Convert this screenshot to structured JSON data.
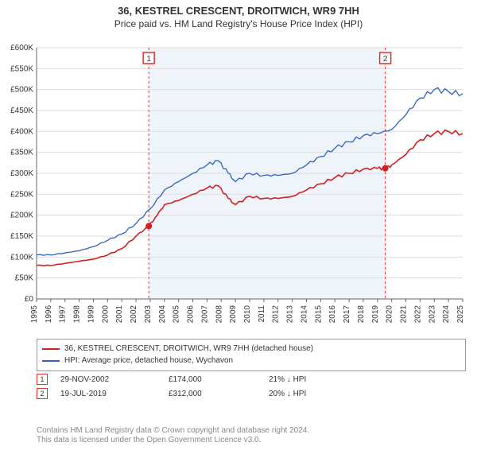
{
  "title": "36, KESTREL CRESCENT, DROITWICH, WR9 7HH",
  "subtitle": "Price paid vs. HM Land Registry's House Price Index (HPI)",
  "chart": {
    "type": "line",
    "background": "#ffffff",
    "shaded_band_color": "#eef4fa",
    "grid_color": "#dddddd",
    "axis_color": "#666666",
    "x": {
      "min": 1995,
      "max": 2025,
      "ticks": [
        1995,
        1996,
        1997,
        1998,
        1999,
        2000,
        2001,
        2002,
        2003,
        2004,
        2005,
        2006,
        2007,
        2008,
        2009,
        2010,
        2011,
        2012,
        2013,
        2014,
        2015,
        2016,
        2017,
        2018,
        2019,
        2020,
        2021,
        2022,
        2023,
        2024,
        2025
      ]
    },
    "y": {
      "min": 0,
      "max": 600000,
      "step": 50000,
      "prefix": "£",
      "suffix": "K",
      "ticks": [
        "£0",
        "£50K",
        "£100K",
        "£150K",
        "£200K",
        "£250K",
        "£300K",
        "£350K",
        "£400K",
        "£450K",
        "£500K",
        "£550K",
        "£600K"
      ]
    },
    "series": [
      {
        "name": "36, KESTREL CRESCENT, DROITWICH, WR9 7HH (detached house)",
        "color": "#d02020",
        "width": 1.6,
        "data": [
          [
            1995,
            80000
          ],
          [
            1996,
            80000
          ],
          [
            1997,
            85000
          ],
          [
            1998,
            90000
          ],
          [
            1999,
            95000
          ],
          [
            2000,
            105000
          ],
          [
            2001,
            120000
          ],
          [
            2002,
            150000
          ],
          [
            2002.9,
            174000
          ],
          [
            2003.5,
            200000
          ],
          [
            2004,
            225000
          ],
          [
            2005,
            235000
          ],
          [
            2006,
            250000
          ],
          [
            2007,
            265000
          ],
          [
            2007.8,
            270000
          ],
          [
            2008.5,
            240000
          ],
          [
            2009,
            225000
          ],
          [
            2010,
            245000
          ],
          [
            2011,
            240000
          ],
          [
            2012,
            240000
          ],
          [
            2013,
            245000
          ],
          [
            2014,
            260000
          ],
          [
            2015,
            275000
          ],
          [
            2016,
            290000
          ],
          [
            2017,
            300000
          ],
          [
            2018,
            310000
          ],
          [
            2019,
            312000
          ],
          [
            2019.55,
            312000
          ],
          [
            2020,
            320000
          ],
          [
            2021,
            345000
          ],
          [
            2022,
            380000
          ],
          [
            2023,
            395000
          ],
          [
            2024,
            400000
          ],
          [
            2025,
            395000
          ]
        ]
      },
      {
        "name": "HPI: Average price, detached house, Wychavon",
        "color": "#3060c0",
        "width": 1.3,
        "data": [
          [
            1995,
            105000
          ],
          [
            1996,
            105000
          ],
          [
            1997,
            110000
          ],
          [
            1998,
            115000
          ],
          [
            1999,
            125000
          ],
          [
            2000,
            140000
          ],
          [
            2001,
            155000
          ],
          [
            2002,
            180000
          ],
          [
            2003,
            215000
          ],
          [
            2004,
            260000
          ],
          [
            2005,
            280000
          ],
          [
            2006,
            300000
          ],
          [
            2007,
            320000
          ],
          [
            2007.8,
            330000
          ],
          [
            2008.5,
            300000
          ],
          [
            2009,
            280000
          ],
          [
            2010,
            300000
          ],
          [
            2011,
            295000
          ],
          [
            2012,
            295000
          ],
          [
            2013,
            300000
          ],
          [
            2014,
            320000
          ],
          [
            2015,
            340000
          ],
          [
            2016,
            360000
          ],
          [
            2017,
            375000
          ],
          [
            2018,
            390000
          ],
          [
            2019,
            395000
          ],
          [
            2020,
            405000
          ],
          [
            2021,
            440000
          ],
          [
            2022,
            480000
          ],
          [
            2023,
            500000
          ],
          [
            2024,
            495000
          ],
          [
            2025,
            490000
          ]
        ]
      }
    ],
    "sale_markers": [
      {
        "n": 1,
        "x": 2002.9,
        "y": 174000,
        "line_color": "#e03030"
      },
      {
        "n": 2,
        "x": 2019.55,
        "y": 312000,
        "line_color": "#e03030"
      }
    ],
    "marker_box_stroke": "#e03030",
    "marker_dot_fill": "#d02020"
  },
  "legend": {
    "s1": "36, KESTREL CRESCENT, DROITWICH, WR9 7HH (detached house)",
    "s2": "HPI: Average price, detached house, Wychavon"
  },
  "sales_table": {
    "rows": [
      {
        "n": "1",
        "date": "29-NOV-2002",
        "price": "£174,000",
        "pct": "21% ↓ HPI"
      },
      {
        "n": "2",
        "date": "19-JUL-2019",
        "price": "£312,000",
        "pct": "20% ↓ HPI"
      }
    ]
  },
  "footer": {
    "l1": "Contains HM Land Registry data © Crown copyright and database right 2024.",
    "l2": "This data is licensed under the Open Government Licence v3.0."
  }
}
